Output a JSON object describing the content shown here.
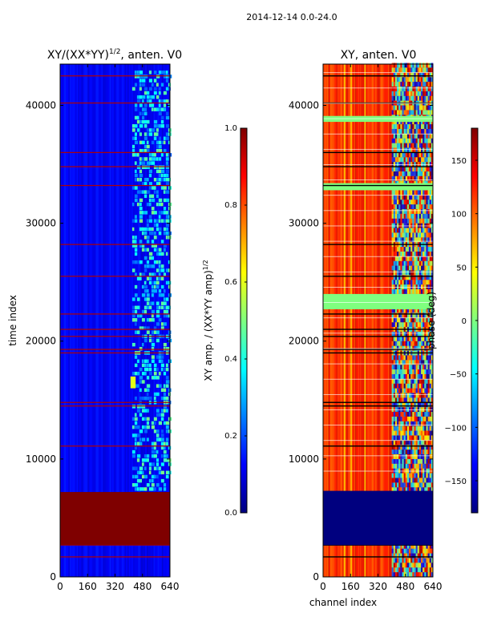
{
  "suptitle": "2014-12-14 0.0-24.0",
  "colors": {
    "jet": [
      "#00007f",
      "#0000ff",
      "#007fff",
      "#00ffff",
      "#7fff7f",
      "#ffff00",
      "#ff7f00",
      "#ff0000",
      "#7f0000"
    ]
  },
  "chart_data": [
    {
      "type": "heatmap",
      "title": "XY/(XX*YY)^1/2, anten. V0",
      "title_main": "XY/(XX*YY)",
      "title_sup": "1/2",
      "title_tail": ", anten. V0",
      "xlabel": "",
      "ylabel": "time index",
      "xlim": [
        0,
        640
      ],
      "ylim": [
        0,
        43500
      ],
      "xticks": [
        "0",
        "160",
        "320",
        "480",
        "640"
      ],
      "yticks": [
        "0",
        "10000",
        "20000",
        "30000",
        "40000"
      ],
      "colorbar": {
        "range": [
          0.0,
          1.0
        ],
        "ticks": [
          "0.0",
          "0.2",
          "0.4",
          "0.6",
          "0.8",
          "1.0"
        ],
        "label_main": "XY amp. / (XX*YY amp)",
        "label_sup": "1/2"
      },
      "saturated_block": [
        2700,
        7200
      ],
      "horizontal_bands": [
        1700,
        2700,
        11100,
        14500,
        14800,
        19000,
        19300,
        20400,
        21000,
        22300,
        25500,
        28200,
        33200,
        34800,
        36000,
        40200,
        42500
      ],
      "features": [
        {
          "t0": 7300,
          "t1": 43000,
          "x0": 420,
          "x1": 640,
          "value": 0.25
        },
        {
          "t0": 16000,
          "t1": 17000,
          "x0": 410,
          "x1": 440,
          "value": 0.6
        }
      ]
    },
    {
      "type": "heatmap",
      "title": "XY, anten. V0",
      "xlabel": "channel index",
      "ylabel": "phase (deg)",
      "xlim": [
        0,
        640
      ],
      "ylim": [
        0,
        43500
      ],
      "xticks": [
        "0",
        "160",
        "320",
        "480",
        "640"
      ],
      "yticks": [
        "0",
        "10000",
        "20000",
        "30000",
        "40000"
      ],
      "colorbar": {
        "range": [
          -180,
          180
        ],
        "ticks": [
          "150",
          "100",
          "50",
          "0",
          "−50",
          "−100",
          "−150"
        ]
      },
      "saturated_block": [
        2700,
        7300
      ],
      "horizontal_bands": [
        1700,
        2700,
        11100,
        14500,
        14800,
        19000,
        19300,
        20400,
        21000,
        22300,
        25500,
        28200,
        33200,
        34800,
        36000,
        40200,
        42500
      ],
      "features": [
        {
          "t0": 7300,
          "t1": 43500,
          "x0": 0,
          "x1": 400,
          "phase": 120
        },
        {
          "t0": 7300,
          "t1": 43500,
          "x0": 400,
          "x1": 640,
          "phase": -120
        }
      ]
    }
  ]
}
